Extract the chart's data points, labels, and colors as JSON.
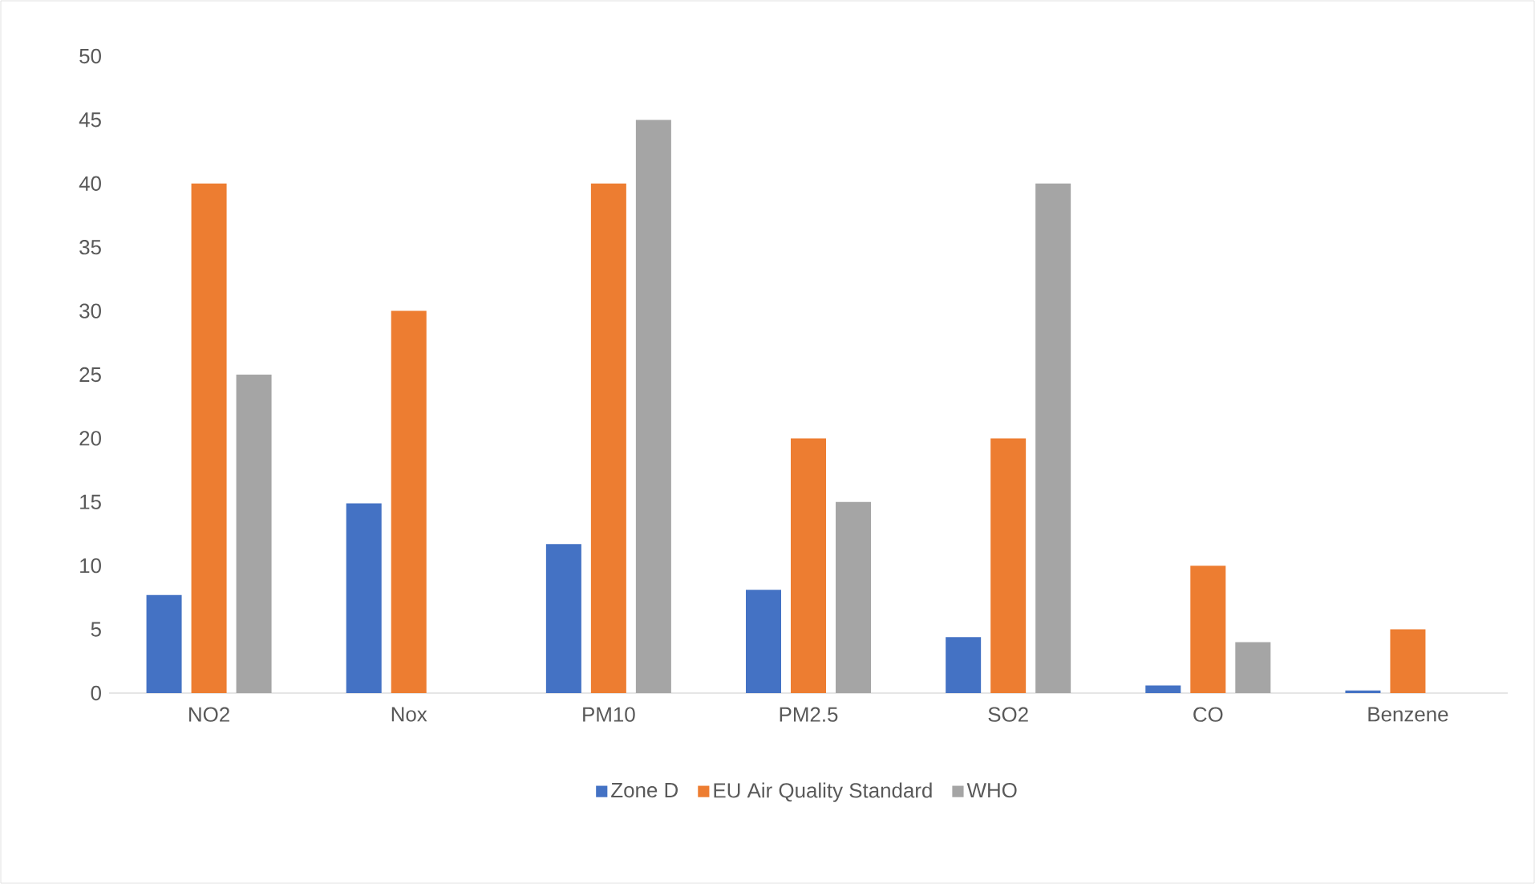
{
  "chart_data": {
    "type": "bar",
    "categories": [
      "NO2",
      "Nox",
      "PM10",
      "PM2.5",
      "SO2",
      "CO",
      "Benzene"
    ],
    "series": [
      {
        "name": "Zone D",
        "color": "#4472c4",
        "values": [
          7.7,
          14.9,
          11.7,
          8.1,
          4.4,
          0.6,
          0.2
        ]
      },
      {
        "name": "EU Air Quality Standard",
        "color": "#ed7d31",
        "values": [
          40,
          30,
          40,
          20,
          20,
          10,
          5
        ]
      },
      {
        "name": "WHO",
        "color": "#a5a5a5",
        "values": [
          25,
          null,
          45,
          15,
          40,
          4,
          null
        ]
      }
    ],
    "ylim": [
      0,
      50
    ],
    "yticks": [
      0,
      5,
      10,
      15,
      20,
      25,
      30,
      35,
      40,
      45,
      50
    ],
    "grid": false,
    "legend": "bottom"
  }
}
